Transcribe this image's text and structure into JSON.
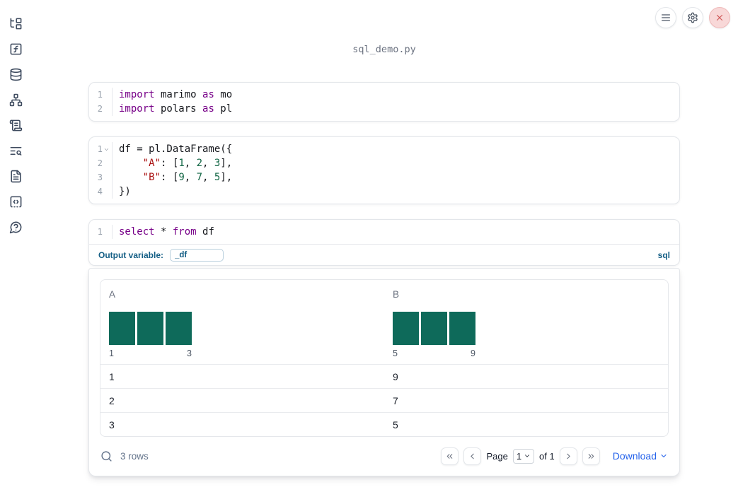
{
  "header": {
    "filename": "sql_demo.py"
  },
  "topbar": {
    "buttons": [
      {
        "icon": "menu"
      },
      {
        "icon": "settings"
      },
      {
        "icon": "close"
      }
    ]
  },
  "sidebar": {
    "items": [
      {
        "icon": "file-tree"
      },
      {
        "icon": "function-square"
      },
      {
        "icon": "database"
      },
      {
        "icon": "network"
      },
      {
        "icon": "scroll-text"
      },
      {
        "icon": "text-search"
      },
      {
        "icon": "file-text"
      },
      {
        "icon": "code-square"
      },
      {
        "icon": "help-circle"
      }
    ]
  },
  "cells": [
    {
      "name": "imports",
      "lines": [
        {
          "n": "1",
          "fold": false,
          "t": [
            [
              "import",
              "kw"
            ],
            [
              " marimo ",
              "tx"
            ],
            [
              "as",
              "kw"
            ],
            [
              " mo",
              "tx"
            ]
          ]
        },
        {
          "n": "2",
          "fold": false,
          "t": [
            [
              "import",
              "kw"
            ],
            [
              " polars ",
              "tx"
            ],
            [
              "as",
              "kw"
            ],
            [
              " pl",
              "tx"
            ]
          ]
        }
      ]
    },
    {
      "name": "dataframe",
      "lines": [
        {
          "n": "1",
          "fold": true,
          "t": [
            [
              "df = pl.DataFrame({",
              "tx"
            ]
          ]
        },
        {
          "n": "2",
          "fold": false,
          "t": [
            [
              "    ",
              "tx"
            ],
            [
              "\"A\"",
              "str"
            ],
            [
              ": [",
              "tx"
            ],
            [
              "1",
              "num"
            ],
            [
              ", ",
              "tx"
            ],
            [
              "2",
              "num"
            ],
            [
              ", ",
              "tx"
            ],
            [
              "3",
              "num"
            ],
            [
              "],",
              "tx"
            ]
          ]
        },
        {
          "n": "3",
          "fold": false,
          "t": [
            [
              "    ",
              "tx"
            ],
            [
              "\"B\"",
              "str"
            ],
            [
              ": [",
              "tx"
            ],
            [
              "9",
              "num"
            ],
            [
              ", ",
              "tx"
            ],
            [
              "7",
              "num"
            ],
            [
              ", ",
              "tx"
            ],
            [
              "5",
              "num"
            ],
            [
              "],",
              "tx"
            ]
          ]
        },
        {
          "n": "4",
          "fold": false,
          "t": [
            [
              "})",
              "tx"
            ]
          ]
        }
      ]
    },
    {
      "name": "sql",
      "lines": [
        {
          "n": "1",
          "fold": false,
          "t": [
            [
              "select",
              "kw"
            ],
            [
              " * ",
              "tx"
            ],
            [
              "from",
              "kw"
            ],
            [
              " df",
              "tx"
            ]
          ]
        }
      ],
      "meta": {
        "label": "Output variable:",
        "value": "_df",
        "lang": "sql"
      }
    }
  ],
  "table": {
    "columns": [
      {
        "header": "A",
        "hist": {
          "bar_count": 3,
          "min": "1",
          "max": "3"
        }
      },
      {
        "header": "B",
        "hist": {
          "bar_count": 3,
          "min": "5",
          "max": "9"
        }
      }
    ],
    "rows": [
      [
        "1",
        "9"
      ],
      [
        "2",
        "7"
      ],
      [
        "3",
        "5"
      ]
    ],
    "footer": {
      "rows_label": "3 rows",
      "page_label": "Page",
      "page_value": "1",
      "of_label": "of 1",
      "download_label": "Download"
    }
  },
  "colors": {
    "keyword": "#770088",
    "string": "#aa1111",
    "number": "#116644",
    "sql_accent": "#135e85",
    "histogram_bar": "#0e6a5a",
    "link_blue": "#2563eb"
  }
}
